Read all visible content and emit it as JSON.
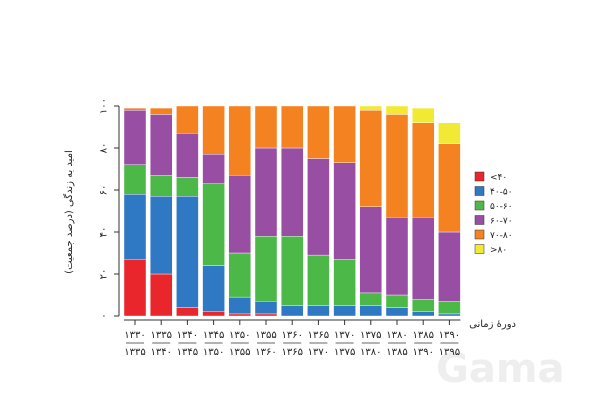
{
  "chart_data": {
    "type": "bar",
    "stacked": true,
    "ylabel": "امید به زندگی (درصد جمعیت)",
    "xlabel": "دورهٔ زمانی",
    "ylim": [
      0,
      100
    ],
    "yticks": [
      "۰",
      "۲۰",
      "۴۰",
      "۶۰",
      "۸۰",
      "۱۰۰"
    ],
    "categories": [
      {
        "top": "۱۳۳۰",
        "bottom": "۱۳۳۵"
      },
      {
        "top": "۱۳۳۵",
        "bottom": "۱۳۴۰"
      },
      {
        "top": "۱۳۴۰",
        "bottom": "۱۳۴۵"
      },
      {
        "top": "۱۳۴۵",
        "bottom": "۱۳۵۰"
      },
      {
        "top": "۱۳۵۰",
        "bottom": "۱۳۵۵"
      },
      {
        "top": "۱۳۵۵",
        "bottom": "۱۳۶۰"
      },
      {
        "top": "۱۳۶۰",
        "bottom": "۱۳۶۵"
      },
      {
        "top": "۱۳۶۵",
        "bottom": "۱۳۷۰"
      },
      {
        "top": "۱۳۷۰",
        "bottom": "۱۳۷۵"
      },
      {
        "top": "۱۳۷۵",
        "bottom": "۱۳۸۰"
      },
      {
        "top": "۱۳۸۰",
        "bottom": "۱۳۸۵"
      },
      {
        "top": "۱۳۸۵",
        "bottom": "۱۳۹۰"
      },
      {
        "top": "۱۳۹۰",
        "bottom": "۱۳۹۵"
      }
    ],
    "series": [
      {
        "name": "<۴۰",
        "color": "#e8262b",
        "values": [
          27,
          20,
          4,
          2,
          1,
          1,
          0,
          0,
          0,
          0,
          0,
          0,
          0
        ]
      },
      {
        "name": "۴۰-۵۰",
        "color": "#2f78c4",
        "values": [
          31,
          37,
          53,
          22,
          8,
          6,
          5,
          5,
          5,
          5,
          4,
          2,
          1
        ]
      },
      {
        "name": "۵۰-۶۰",
        "color": "#4cb848",
        "values": [
          14,
          10,
          9,
          39,
          21,
          31,
          33,
          24,
          22,
          6,
          6,
          6,
          6
        ]
      },
      {
        "name": "۶۰-۷۰",
        "color": "#984ea3",
        "values": [
          26,
          29,
          21,
          14,
          37,
          42,
          42,
          46,
          46,
          41,
          37,
          39,
          33
        ]
      },
      {
        "name": "۷۰-۸۰",
        "color": "#f58220",
        "values": [
          1,
          3,
          13,
          23,
          33,
          20,
          20,
          25,
          27,
          46,
          49,
          45,
          42
        ]
      },
      {
        "name": ">۸۰",
        "color": "#f2e935",
        "values": [
          0,
          0,
          0,
          0,
          0,
          0,
          0,
          0,
          0,
          2,
          4,
          7,
          10
        ]
      }
    ],
    "legend_position": "right"
  },
  "watermark": {
    "text": "Gama"
  }
}
